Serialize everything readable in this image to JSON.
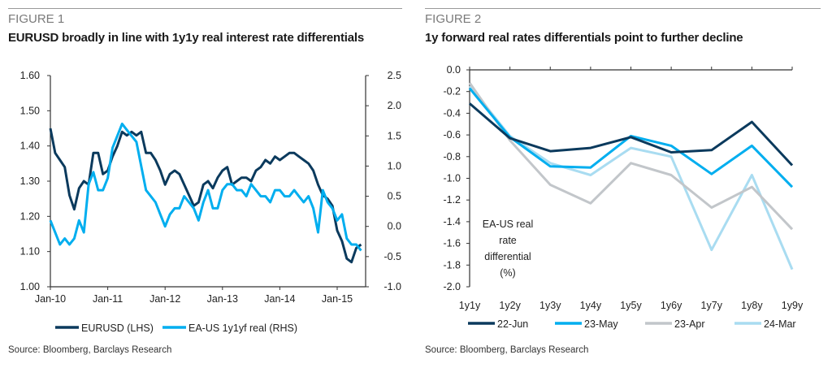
{
  "figure1": {
    "label": "FIGURE 1",
    "title": "EURUSD broadly in line with 1y1y real interest rate differentials",
    "source": "Source: Bloomberg, Barclays Research"
  },
  "figure2": {
    "label": "FIGURE 2",
    "title": "1y forward real rates differentials point to further decline",
    "source": "Source: Bloomberg, Barclays Research"
  },
  "chart_data": [
    {
      "type": "line",
      "x_ticks": [
        "Jan-10",
        "Jan-11",
        "Jan-12",
        "Jan-13",
        "Jan-14",
        "Jan-15"
      ],
      "x_start": "Jan-10",
      "x_frequency": "monthly (approximate)",
      "y_left": {
        "lim": [
          1.0,
          1.6
        ],
        "ticks": [
          "1.00",
          "1.10",
          "1.20",
          "1.30",
          "1.40",
          "1.50",
          "1.60"
        ]
      },
      "y_right": {
        "lim": [
          -1.0,
          2.5
        ],
        "ticks": [
          "-1.0",
          "-0.5",
          "0.0",
          "0.5",
          "1.0",
          "1.5",
          "2.0",
          "2.5"
        ]
      },
      "legend_position": "bottom",
      "series": [
        {
          "name": "EURUSD (LHS)",
          "axis": "left",
          "color": "#0b3a5d",
          "values": [
            1.45,
            1.38,
            1.36,
            1.34,
            1.26,
            1.22,
            1.28,
            1.3,
            1.29,
            1.38,
            1.38,
            1.32,
            1.33,
            1.37,
            1.4,
            1.44,
            1.43,
            1.44,
            1.43,
            1.44,
            1.38,
            1.38,
            1.36,
            1.33,
            1.29,
            1.32,
            1.33,
            1.32,
            1.29,
            1.26,
            1.23,
            1.24,
            1.29,
            1.3,
            1.28,
            1.31,
            1.33,
            1.34,
            1.29,
            1.3,
            1.31,
            1.31,
            1.3,
            1.33,
            1.34,
            1.36,
            1.35,
            1.37,
            1.36,
            1.37,
            1.38,
            1.38,
            1.37,
            1.36,
            1.35,
            1.33,
            1.29,
            1.26,
            1.25,
            1.23,
            1.16,
            1.13,
            1.08,
            1.07,
            1.11,
            1.12
          ]
        },
        {
          "name": "EA-US 1y1yf real (RHS)",
          "axis": "right",
          "color": "#00aeef",
          "values": [
            0.1,
            -0.1,
            -0.3,
            -0.2,
            -0.3,
            -0.2,
            0.1,
            -0.1,
            0.7,
            0.9,
            0.6,
            0.6,
            0.8,
            1.3,
            1.5,
            1.7,
            1.6,
            1.5,
            1.4,
            1.0,
            0.6,
            0.5,
            0.4,
            0.2,
            0.0,
            0.2,
            0.3,
            0.3,
            0.5,
            0.4,
            0.3,
            0.1,
            0.4,
            0.6,
            0.3,
            0.3,
            0.6,
            0.7,
            0.7,
            0.6,
            0.6,
            0.5,
            0.7,
            0.6,
            0.5,
            0.5,
            0.4,
            0.6,
            0.6,
            0.5,
            0.5,
            0.6,
            0.5,
            0.4,
            0.5,
            0.3,
            -0.1,
            0.6,
            0.4,
            0.3,
            0.1,
            0.2,
            -0.2,
            -0.3,
            -0.3,
            -0.4
          ]
        }
      ]
    },
    {
      "type": "line",
      "categories": [
        "1y1y",
        "1y2y",
        "1y3y",
        "1y4y",
        "1y5y",
        "1y6y",
        "1y7y",
        "1y8y",
        "1y9y"
      ],
      "ylim": [
        -2.0,
        0.0
      ],
      "y_ticks": [
        "0.0",
        "-0.2",
        "-0.4",
        "-0.6",
        "-0.8",
        "-1.0",
        "-1.2",
        "-1.4",
        "-1.6",
        "-1.8",
        "-2.0"
      ],
      "annotation": [
        "EA-US real",
        "rate",
        "differential",
        "(%)"
      ],
      "legend_position": "bottom",
      "series": [
        {
          "name": "22-Jun",
          "color": "#0b3a5d",
          "values": [
            -0.31,
            -0.63,
            -0.75,
            -0.72,
            -0.62,
            -0.76,
            -0.74,
            -0.48,
            -0.88
          ]
        },
        {
          "name": "23-May",
          "color": "#00aeef",
          "values": [
            -0.17,
            -0.62,
            -0.89,
            -0.9,
            -0.61,
            -0.7,
            -0.96,
            -0.7,
            -1.08
          ]
        },
        {
          "name": "23-Apr",
          "color": "#c2c6ca",
          "values": [
            -0.12,
            -0.65,
            -1.06,
            -1.23,
            -0.86,
            -0.97,
            -1.27,
            -1.08,
            -1.47
          ]
        },
        {
          "name": "24-Mar",
          "color": "#a9dcf1",
          "values": [
            -0.15,
            -0.61,
            -0.86,
            -0.97,
            -0.72,
            -0.8,
            -1.66,
            -0.97,
            -1.84
          ]
        }
      ]
    }
  ]
}
